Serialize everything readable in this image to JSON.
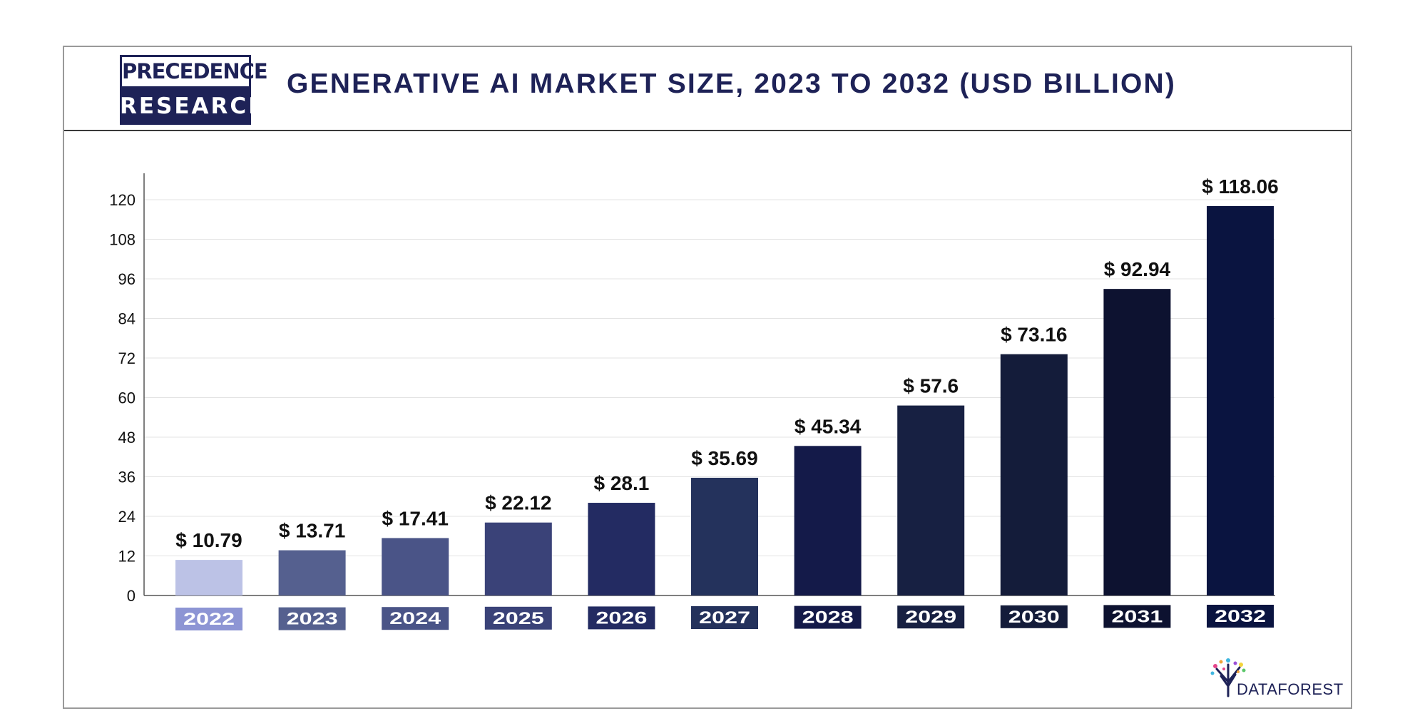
{
  "header": {
    "logo_line1": "PRECEDENCE",
    "logo_line2": "RESEARCH",
    "title": "GENERATIVE AI MARKET SIZE, 2023 TO 2032 (USD BILLION)"
  },
  "footer": {
    "brand": "DATAFOREST"
  },
  "chart_data": {
    "type": "bar",
    "categories": [
      "2022",
      "2023",
      "2024",
      "2025",
      "2026",
      "2027",
      "2028",
      "2029",
      "2030",
      "2031",
      "2032"
    ],
    "values": [
      10.79,
      13.71,
      17.41,
      22.12,
      28.1,
      35.69,
      45.34,
      57.6,
      73.16,
      92.94,
      118.06
    ],
    "data_labels": [
      "$ 10.79",
      "$ 13.71",
      "$ 17.41",
      "$ 22.12",
      "$ 28.1",
      "$ 35.69",
      "$ 45.34",
      "$ 57.6",
      "$ 73.16",
      "$ 92.94",
      "$ 118.06"
    ],
    "yticks": [
      0,
      12,
      24,
      36,
      48,
      60,
      72,
      84,
      96,
      108,
      120
    ],
    "ylim": [
      0,
      128
    ],
    "grid": true,
    "legend": "none",
    "colors": [
      "#bcc2e6",
      "#55608f",
      "#4a5487",
      "#3a4278",
      "#232b62",
      "#24325c",
      "#141a49",
      "#172042",
      "#141c3a",
      "#0d1230",
      "#0a1440"
    ],
    "category_label_colors": [
      "#8d95d4",
      "#55608f",
      "#4a5487",
      "#3a4278",
      "#232b62",
      "#24325c",
      "#141a49",
      "#172042",
      "#141c3a",
      "#0d1230",
      "#0a1440"
    ]
  }
}
